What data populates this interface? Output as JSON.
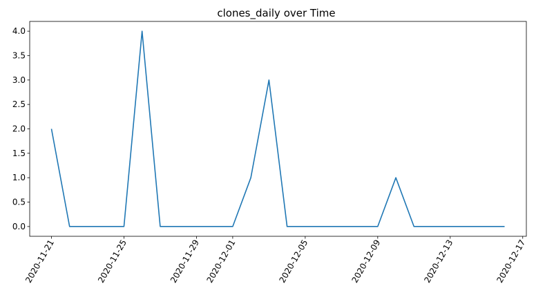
{
  "chart_data": {
    "type": "line",
    "title": "clones_daily over Time",
    "xlabel": "",
    "ylabel": "",
    "x": [
      "2020-11-21",
      "2020-11-22",
      "2020-11-23",
      "2020-11-24",
      "2020-11-25",
      "2020-11-26",
      "2020-11-27",
      "2020-11-28",
      "2020-11-29",
      "2020-11-30",
      "2020-12-01",
      "2020-12-02",
      "2020-12-03",
      "2020-12-04",
      "2020-12-05",
      "2020-12-06",
      "2020-12-07",
      "2020-12-08",
      "2020-12-09",
      "2020-12-10",
      "2020-12-11",
      "2020-12-12",
      "2020-12-13",
      "2020-12-14",
      "2020-12-15",
      "2020-12-16"
    ],
    "series": [
      {
        "values": [
          2,
          0,
          0,
          0,
          0,
          4,
          0,
          0,
          0,
          0,
          0,
          1,
          3,
          0,
          0,
          0,
          0,
          0,
          0,
          1,
          0,
          0,
          0,
          0,
          0,
          0
        ],
        "color": "#1f77b4"
      }
    ],
    "xlim": [
      "2020-11-19.8",
      "2020-12-17.2"
    ],
    "ylim": [
      -0.2,
      4.2
    ],
    "x_ticks": [
      "2020-11-21",
      "2020-11-25",
      "2020-11-29",
      "2020-12-01",
      "2020-12-05",
      "2020-12-09",
      "2020-12-13",
      "2020-12-17"
    ],
    "y_ticks": [
      "0.0",
      "0.5",
      "1.0",
      "1.5",
      "2.0",
      "2.5",
      "3.0",
      "3.5",
      "4.0"
    ],
    "grid": false,
    "legend": "none"
  }
}
